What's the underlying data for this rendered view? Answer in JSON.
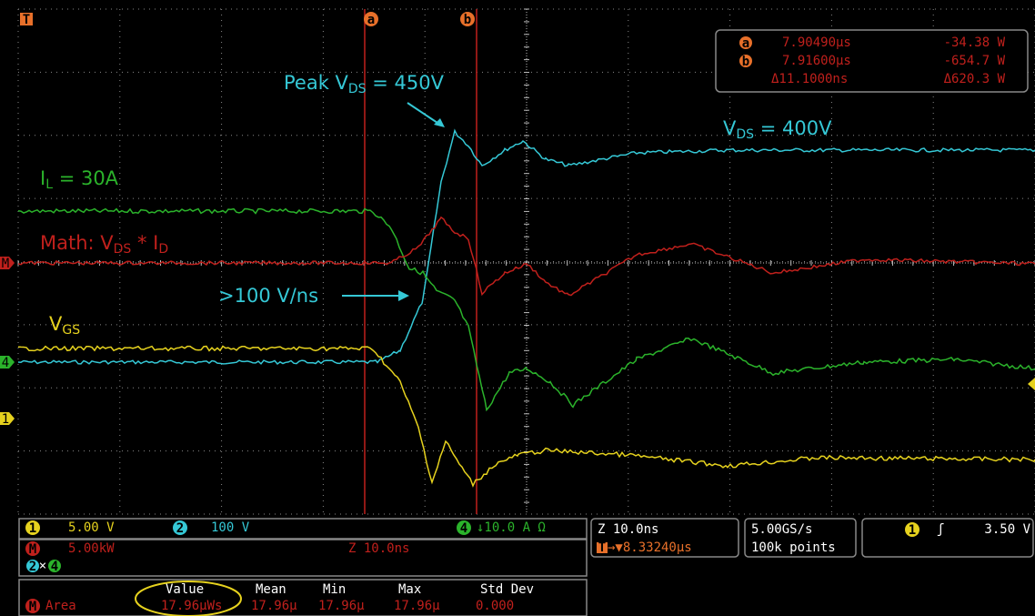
{
  "markers": {
    "trigger": "T",
    "cursor_a": "a",
    "cursor_b": "b",
    "level_math": "M",
    "level_ch4": "4",
    "level_ch1": "1"
  },
  "cursor_readout": {
    "a": {
      "label": "a",
      "time": "7.90490µs",
      "value": "-34.38 W"
    },
    "b": {
      "label": "b",
      "time": "7.91600µs",
      "value": "-654.7 W"
    },
    "delta": {
      "time": "Δ11.1000ns",
      "value": "Δ620.3 W"
    }
  },
  "annotations": {
    "peak_vds": {
      "text": "Peak V",
      "sub": "DS",
      "tail": " = 450V"
    },
    "vds": {
      "text": "V",
      "sub": "DS",
      "tail": " = 400V"
    },
    "il": {
      "text": "I",
      "sub": "L",
      "tail": " = 30A"
    },
    "math": {
      "text": "Math: V",
      "sub": "DS",
      "mid": " * I",
      "sub2": "D"
    },
    "slew": ">100 V/ns",
    "vgs": {
      "text": "V",
      "sub": "GS"
    }
  },
  "channels": [
    {
      "id": "1",
      "scale": "5.00 V"
    },
    {
      "id": "2",
      "scale": "100 V"
    },
    {
      "id": "4",
      "scale": "↓10.0 A Ω"
    }
  ],
  "math": {
    "id": "M",
    "scale": "5.00kW",
    "zoom": "Z 10.0ns",
    "source_a": "2",
    "op": "×",
    "source_b": "4"
  },
  "timebase": {
    "zoom": "Z 10.0ns",
    "icon": "T",
    "position": "→▼8.33240µs"
  },
  "acquisition": {
    "rate": "5.00GS/s",
    "length": "100k points"
  },
  "trigger": {
    "source": "1",
    "slope": "ʃ",
    "level": "3.50 V"
  },
  "measurements": {
    "headers": [
      "Value",
      "Mean",
      "Min",
      "Max",
      "Std Dev"
    ],
    "row": {
      "source": "M",
      "name": "Area",
      "values": [
        "17.96µWs",
        "17.96µ",
        "17.96µ",
        "17.96µ",
        "0.000"
      ]
    }
  }
}
